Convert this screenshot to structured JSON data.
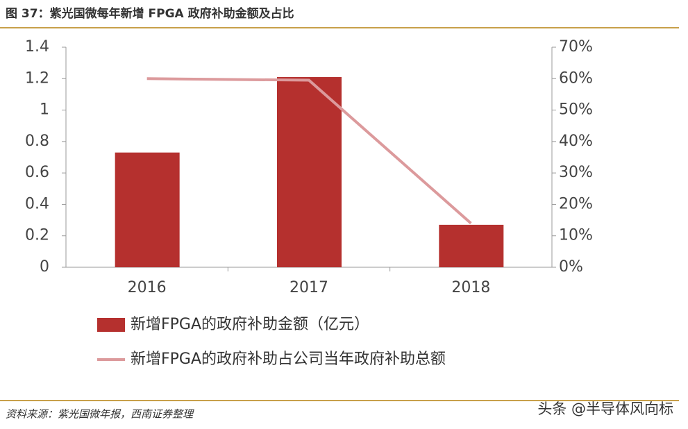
{
  "chart_data": {
    "type": "bar",
    "title": "图 37：紫光国微每年新增 FPGA 政府补助金额及占比",
    "categories": [
      "2016",
      "2017",
      "2018"
    ],
    "series": [
      {
        "name": "新增FPGA的政府补助金额（亿元）",
        "type": "bar",
        "color": "#b5302e",
        "values": [
          0.73,
          1.21,
          0.27
        ]
      },
      {
        "name": "新增FPGA的政府补助占公司当年政府补助总额",
        "type": "line",
        "axis": "y2",
        "color": "#dc9a9c",
        "values": [
          60,
          59.5,
          14
        ]
      }
    ],
    "ylim": [
      0,
      1.4
    ],
    "yticks": [
      0,
      0.2,
      0.4,
      0.6,
      0.8,
      1,
      1.2,
      1.4
    ],
    "y2lim": [
      0,
      70
    ],
    "y2ticks": [
      {
        "value": 0,
        "label": "0%"
      },
      {
        "value": 10,
        "label": "10%"
      },
      {
        "value": 20,
        "label": "20%"
      },
      {
        "value": 30,
        "label": "30%"
      },
      {
        "value": 40,
        "label": "40%"
      },
      {
        "value": 50,
        "label": "50%"
      },
      {
        "value": 60,
        "label": "60%"
      },
      {
        "value": 70,
        "label": "70%"
      }
    ],
    "grid": false,
    "source": "资料来源：紫光国微年报，西南证券整理",
    "watermark": "头条 @半导体风向标"
  }
}
